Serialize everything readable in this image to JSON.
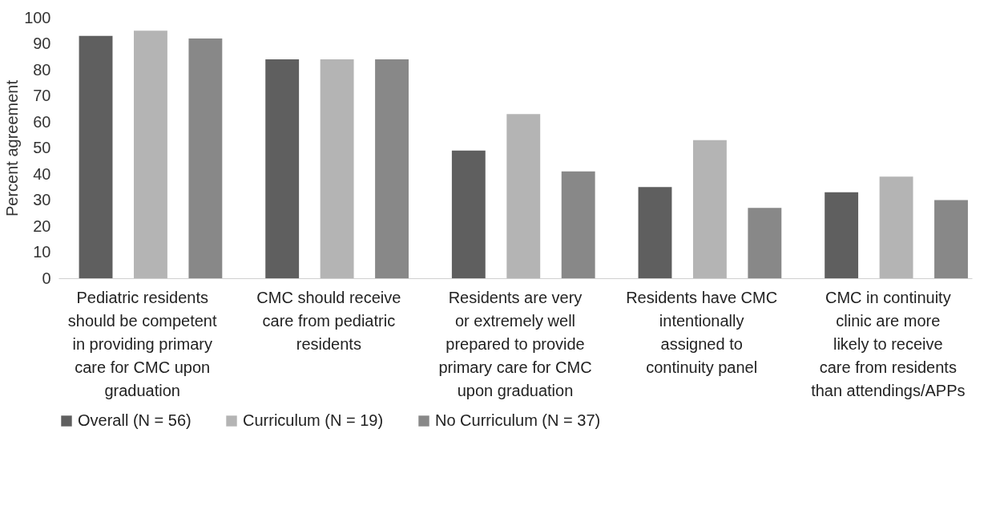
{
  "chart_data": {
    "type": "bar",
    "ylabel": "Percent agreement",
    "categories": [
      "Pediatric residents should be competent in providing primary care for CMC upon graduation",
      "CMC should receive care from pediatric residents",
      "Residents are very or extremely well prepared to provide primary care for CMC upon graduation",
      "Residents have CMC intentionally assigned to continuity panel",
      "CMC in continuity clinic are more likely to receive care from residents than attendings/APPs"
    ],
    "series": [
      {
        "name": "Overall (N = 56)",
        "color": "#5f5f5f",
        "values": [
          93,
          84,
          49,
          35,
          33
        ]
      },
      {
        "name": "Curriculum (N = 19)",
        "color": "#b4b4b4",
        "values": [
          95,
          84,
          63,
          53,
          39
        ]
      },
      {
        "name": "No Curriculum (N = 37)",
        "color": "#888888",
        "values": [
          92,
          84,
          41,
          27,
          30
        ]
      }
    ],
    "ylim": [
      0,
      100
    ],
    "yticks": [
      0,
      10,
      20,
      30,
      40,
      50,
      60,
      70,
      80,
      90,
      100
    ],
    "grid": false,
    "legend": "bottom"
  }
}
